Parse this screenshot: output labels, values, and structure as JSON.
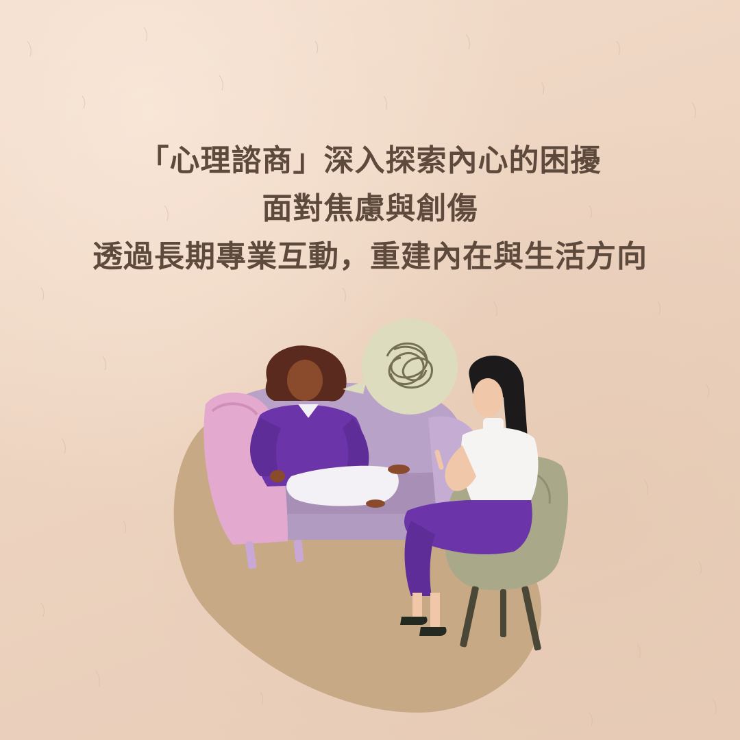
{
  "heading": {
    "line1": "「心理諮商」深入探索內心的困擾",
    "line2": "面對焦慮與創傷",
    "line3": "透過長期專業互動，重建內在與生活方向"
  },
  "colors": {
    "background": "#f0d9c6",
    "text": "#5e4a3d",
    "blob": "#c8a986",
    "sofa": "#b9a2c7",
    "sofa_arm": "#e4a9cf",
    "chair": "#a9a98a",
    "bubble": "#dedcbe",
    "purple": "#6b34a8"
  },
  "illustration": {
    "scene": "therapy-session",
    "icons": [
      "sofa-icon",
      "armchair-icon",
      "speech-bubble-icon",
      "tangled-scribble-icon"
    ]
  }
}
